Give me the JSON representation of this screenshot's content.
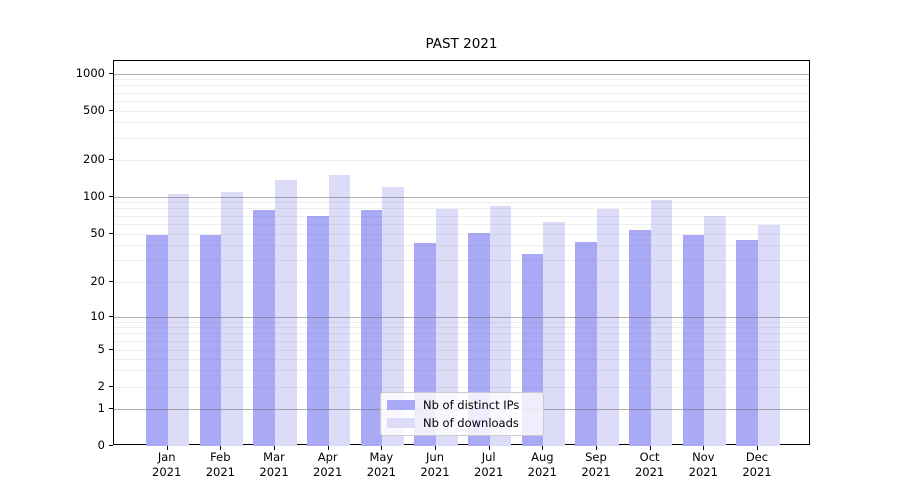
{
  "chart_data": {
    "type": "bar",
    "title": "PAST 2021",
    "x_axis": {
      "categories": [
        "Jan",
        "Feb",
        "Mar",
        "Apr",
        "May",
        "Jun",
        "Jul",
        "Aug",
        "Sep",
        "Oct",
        "Nov",
        "Dec"
      ],
      "year_label": "2021"
    },
    "y_axis": {
      "scale": "symlog",
      "tick_labels": [
        "0",
        "1",
        "2",
        "5",
        "10",
        "20",
        "50",
        "100",
        "200",
        "500",
        "1000"
      ],
      "tick_values": [
        0,
        1,
        2,
        5,
        10,
        20,
        50,
        100,
        200,
        500,
        1000
      ],
      "range": [
        0,
        1270
      ],
      "grid": "on"
    },
    "series": [
      {
        "name": "Nb of distinct IPs",
        "color": "#a9a9f6",
        "values": [
          49,
          49,
          78,
          70,
          78,
          42,
          51,
          34,
          43,
          54,
          49,
          45
        ]
      },
      {
        "name": "Nb of downloads",
        "color": "#dcdcf9",
        "values": [
          106,
          110,
          137,
          151,
          121,
          80,
          84,
          63,
          80,
          94,
          70,
          59
        ]
      }
    ],
    "legend": {
      "position": "lower-center",
      "background": "#ffffff",
      "border_color": "#cccccc"
    },
    "grid_colors": {
      "major": "#b9b9b9",
      "minor": "#ededed"
    }
  }
}
